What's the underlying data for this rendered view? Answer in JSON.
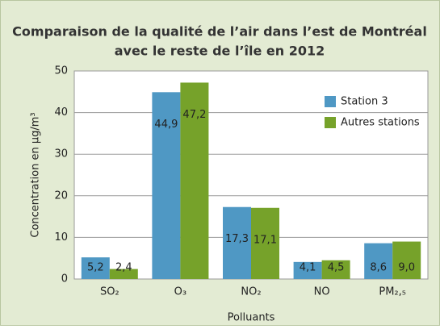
{
  "chart_data": {
    "type": "bar",
    "title": [
      "Comparaison de la qualité de l’air dans l’est de Montréal",
      "avec le reste de l’île en 2012"
    ],
    "categories": [
      "SO₂",
      "O₃",
      "NO₂",
      "NO",
      "PM₂,₅"
    ],
    "series": [
      {
        "name": "Station 3",
        "color": "#4f98c4",
        "values": [
          5.2,
          44.9,
          17.3,
          4.1,
          8.6
        ],
        "value_labels": [
          "5,2",
          "44,9",
          "17,3",
          "4,1",
          "8,6"
        ]
      },
      {
        "name": "Autres stations",
        "color": "#76a22a",
        "values": [
          2.4,
          47.2,
          17.1,
          4.5,
          9.0
        ],
        "value_labels": [
          "2,4",
          "47,2",
          "17,1",
          "4,5",
          "9,0"
        ]
      }
    ],
    "xlabel": "Polluants",
    "ylabel": "Concentration en µg/m³",
    "ylim": [
      0,
      50
    ],
    "yticks": [
      0,
      10,
      20,
      30,
      40,
      50
    ],
    "grid": true,
    "legend": "top-right"
  }
}
